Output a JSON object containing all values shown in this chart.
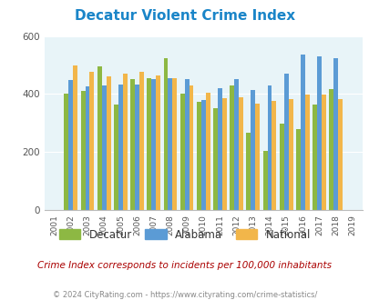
{
  "title": "Decatur Violent Crime Index",
  "years": [
    2001,
    2002,
    2003,
    2004,
    2005,
    2006,
    2007,
    2008,
    2009,
    2010,
    2011,
    2012,
    2013,
    2014,
    2015,
    2016,
    2017,
    2018,
    2019
  ],
  "decatur": [
    0,
    400,
    410,
    495,
    365,
    450,
    455,
    525,
    400,
    372,
    352,
    430,
    265,
    203,
    298,
    278,
    363,
    418,
    0
  ],
  "alabama": [
    0,
    447,
    425,
    430,
    432,
    432,
    450,
    455,
    450,
    380,
    420,
    450,
    415,
    430,
    470,
    535,
    530,
    525,
    0
  ],
  "national": [
    0,
    498,
    475,
    462,
    470,
    475,
    465,
    455,
    430,
    405,
    387,
    390,
    368,
    375,
    383,
    398,
    398,
    383,
    0
  ],
  "decatur_color": "#8db843",
  "alabama_color": "#5b9bd5",
  "national_color": "#f2b64a",
  "bg_color": "#e8f4f8",
  "ylim": [
    0,
    600
  ],
  "yticks": [
    0,
    200,
    400,
    600
  ],
  "bar_width": 0.27,
  "subtitle": "Crime Index corresponds to incidents per 100,000 inhabitants",
  "footer": "© 2024 CityRating.com - https://www.cityrating.com/crime-statistics/",
  "legend_labels": [
    "Decatur",
    "Alabama",
    "National"
  ]
}
